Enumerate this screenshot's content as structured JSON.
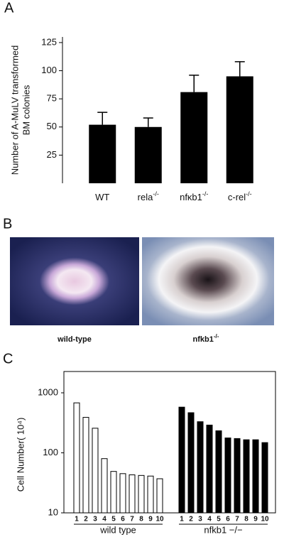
{
  "chart_data": [
    {
      "type": "bar",
      "panel_label": "A",
      "y_label": [
        "Number of A-MuLV transformed",
        "BM colonies"
      ],
      "categories": [
        "WT",
        "rela",
        "nfκb1",
        "c-rel"
      ],
      "category_superscripts": [
        null,
        "-/-",
        "-/-",
        "-/-"
      ],
      "values": [
        52,
        50,
        81,
        95
      ],
      "errors": [
        11,
        8,
        15,
        13
      ],
      "color": "#000000",
      "ylim": [
        0,
        130
      ],
      "yticks": [
        25,
        50,
        75,
        100,
        125
      ]
    },
    {
      "type": "grouped-bar",
      "panel_label": "C",
      "y_label": "Cell Number( 10⁴)",
      "log_scale": true,
      "ylim": [
        10,
        1000
      ],
      "yticks": [
        10,
        100,
        1000
      ],
      "groups": [
        {
          "name": "wild type",
          "color": "#ffffff",
          "categories": [
            "1",
            "2",
            "3",
            "4",
            "5",
            "6",
            "7",
            "8",
            "9",
            "10"
          ],
          "values": [
            680,
            390,
            257,
            80,
            49,
            45,
            43,
            42,
            41,
            37
          ]
        },
        {
          "name": "nfkb1 −/−",
          "color": "#000000",
          "categories": [
            "1",
            "2",
            "3",
            "4",
            "5",
            "6",
            "7",
            "8",
            "9",
            "10"
          ],
          "values": [
            577,
            466,
            330,
            290,
            233,
            177,
            173,
            165,
            165,
            148
          ]
        }
      ]
    }
  ],
  "panel_b": {
    "label": "B",
    "images": [
      {
        "caption": "wild-type",
        "caption_sup": null
      },
      {
        "caption": "nfkb1",
        "caption_sup": "-/-"
      }
    ]
  }
}
